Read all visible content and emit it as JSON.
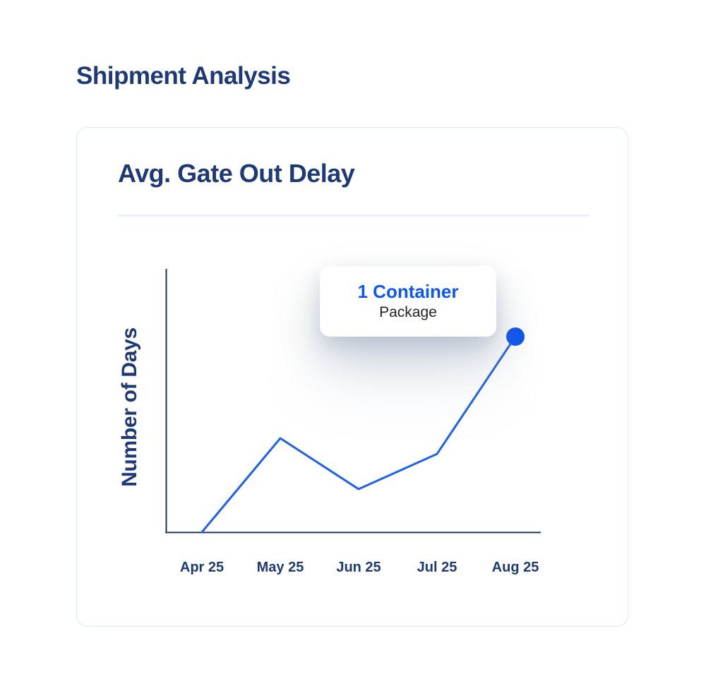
{
  "page": {
    "title": "Shipment Analysis",
    "background_color": "#ffffff"
  },
  "card": {
    "title": "Avg. Gate Out Delay"
  },
  "tooltip": {
    "title": "1 Container",
    "subtitle": "Package"
  },
  "colors": {
    "heading_navy": "#1e3a76",
    "axis_navy": "#1c3664",
    "line_blue": "#2161ea",
    "dot_blue": "#0c55ef",
    "tooltip_title_blue": "#0d57ee",
    "card_border": "#dce9f8",
    "divider": "#e6f0fc"
  },
  "chart_data": {
    "type": "line",
    "title": "Avg. Gate Out Delay",
    "xlabel": "",
    "ylabel": "Number of Days",
    "categories": [
      "Apr 25",
      "May 25",
      "Jun 25",
      "Jul 25",
      "Aug 25"
    ],
    "series": [
      {
        "name": "Avg. Gate Out Delay",
        "values_relative_0_to_1": [
          0,
          0.48,
          0.22,
          0.4,
          1.0
        ]
      }
    ],
    "y_tick_labels_visible": false,
    "grid": false,
    "legend_position": "none",
    "highlighted_point": {
      "category": "Aug 25",
      "marker": "filled-circle",
      "tooltip_title": "1 Container",
      "tooltip_subtitle": "Package"
    }
  }
}
